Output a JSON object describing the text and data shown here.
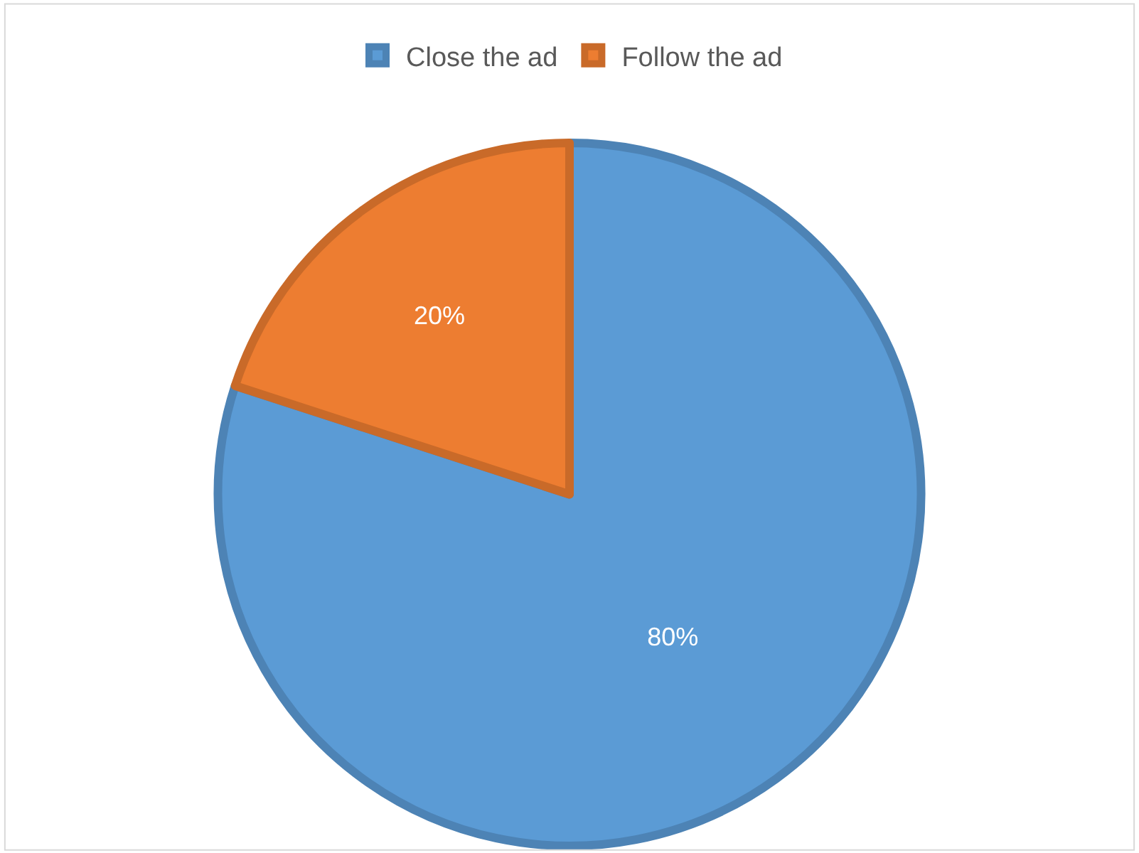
{
  "chart_data": {
    "type": "pie",
    "categories": [
      "Close the ad",
      "Follow the ad"
    ],
    "values": [
      80,
      20
    ],
    "colors": [
      "#5b9bd5",
      "#ed7d31"
    ],
    "value_labels": [
      "80%",
      "20%"
    ],
    "legend": "top"
  }
}
